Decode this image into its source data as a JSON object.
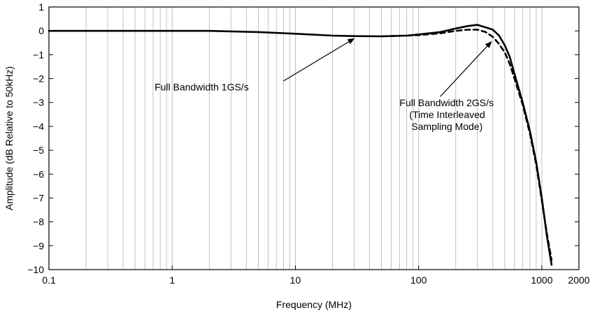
{
  "chart_data": {
    "type": "line",
    "title": "",
    "xlabel": "Frequency (MHz)",
    "ylabel": "Amplitude (dB Relative to 50kHz)",
    "xscale": "log",
    "xlim": [
      0.1,
      2000
    ],
    "ylim": [
      -10,
      1
    ],
    "grid": "vertical log-decade gridlines",
    "x_tick_labels": [
      {
        "value": 0.1,
        "label": "0.1"
      },
      {
        "value": 1,
        "label": "1"
      },
      {
        "value": 10,
        "label": "10"
      },
      {
        "value": 100,
        "label": "100"
      },
      {
        "value": 1000,
        "label": "1000"
      },
      {
        "value": 2000,
        "label": "2000"
      }
    ],
    "y_ticks": [
      1,
      0,
      -1,
      -2,
      -3,
      -4,
      -5,
      -6,
      -7,
      -8,
      -9,
      -10
    ],
    "y_tick_labels": [
      "1",
      "0",
      "−1",
      "−2",
      "−3",
      "−4",
      "−5",
      "−6",
      "−7",
      "−8",
      "−9",
      "−10"
    ],
    "series": [
      {
        "label": "Full Bandwidth 1GS/s",
        "style": "solid",
        "color": "#000000",
        "points": [
          [
            0.1,
            0
          ],
          [
            0.5,
            0
          ],
          [
            1,
            0
          ],
          [
            2,
            0
          ],
          [
            5,
            -0.05
          ],
          [
            10,
            -0.12
          ],
          [
            20,
            -0.2
          ],
          [
            30,
            -0.22
          ],
          [
            50,
            -0.23
          ],
          [
            80,
            -0.2
          ],
          [
            100,
            -0.15
          ],
          [
            150,
            -0.05
          ],
          [
            200,
            0.1
          ],
          [
            250,
            0.2
          ],
          [
            300,
            0.25
          ],
          [
            350,
            0.15
          ],
          [
            400,
            0.05
          ],
          [
            450,
            -0.2
          ],
          [
            500,
            -0.6
          ],
          [
            550,
            -1.1
          ],
          [
            600,
            -1.8
          ],
          [
            700,
            -3.0
          ],
          [
            800,
            -4.2
          ],
          [
            900,
            -5.5
          ],
          [
            1000,
            -7.0
          ],
          [
            1100,
            -8.6
          ],
          [
            1200,
            -9.8
          ]
        ]
      },
      {
        "label": "Full Bandwidth 2GS/s (Time Interleaved Sampling Mode)",
        "style": "dashed",
        "color": "#000000",
        "points": [
          [
            50,
            -0.23
          ],
          [
            80,
            -0.2
          ],
          [
            100,
            -0.18
          ],
          [
            150,
            -0.1
          ],
          [
            200,
            0
          ],
          [
            250,
            0.05
          ],
          [
            300,
            0.05
          ],
          [
            350,
            -0.05
          ],
          [
            400,
            -0.25
          ],
          [
            450,
            -0.55
          ],
          [
            500,
            -0.9
          ],
          [
            550,
            -1.4
          ],
          [
            600,
            -2.0
          ],
          [
            700,
            -3.1
          ],
          [
            800,
            -4.3
          ],
          [
            900,
            -5.6
          ],
          [
            1000,
            -7.1
          ],
          [
            1100,
            -8.5
          ],
          [
            1200,
            -9.6
          ]
        ]
      }
    ],
    "annotations": [
      {
        "lines": [
          "Full Bandwidth 1GS/s"
        ],
        "text_at": [
          0.72,
          -2.5
        ],
        "arrow_from": [
          8,
          -2.1
        ],
        "arrow_to": [
          30,
          -0.32
        ]
      },
      {
        "lines": [
          "Full Bandwidth 2GS/s",
          "(Time Interleaved",
          "Sampling Mode)"
        ],
        "text_at": [
          70,
          -3.15
        ],
        "arrow_from": [
          150,
          -2.75
        ],
        "arrow_to": [
          390,
          -0.45
        ]
      }
    ]
  }
}
